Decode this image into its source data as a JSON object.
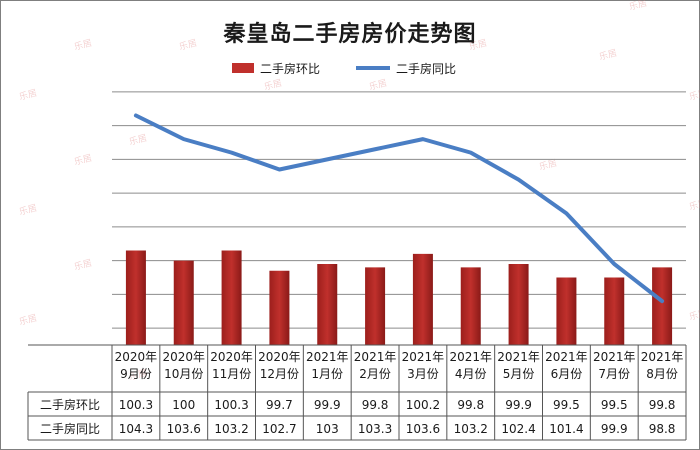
{
  "chart_data": {
    "type": "bar+line",
    "title": "秦皇岛二手房房价走势图",
    "categories": [
      "2020年\n9月份",
      "2020年\n10月份",
      "2020年\n11月份",
      "2020年\n12月份",
      "2021年\n1月份",
      "2021年\n2月份",
      "2021年\n3月份",
      "2021年\n4月份",
      "2021年\n5月份",
      "2021年\n6月份",
      "2021年\n7月份",
      "2021年\n8月份"
    ],
    "series": [
      {
        "name": "二手房环比",
        "kind": "bar",
        "values": [
          100.3,
          100,
          100.3,
          99.7,
          99.9,
          99.8,
          100.2,
          99.8,
          99.9,
          99.5,
          99.5,
          99.8
        ],
        "color": "#c0302c"
      },
      {
        "name": "二手房同比",
        "kind": "line",
        "values": [
          104.3,
          103.6,
          103.2,
          102.7,
          103,
          103.3,
          103.6,
          103.2,
          102.4,
          101.4,
          99.9,
          98.8
        ],
        "color": "#4a7ec4"
      }
    ],
    "table": {
      "rows": [
        {
          "label": "二手房环比",
          "values": [
            "100.3",
            "100",
            "100.3",
            "99.7",
            "99.9",
            "99.8",
            "100.2",
            "99.8",
            "99.9",
            "99.5",
            "99.5",
            "99.8"
          ]
        },
        {
          "label": "二手房同比",
          "values": [
            "104.3",
            "103.6",
            "103.2",
            "102.7",
            "103",
            "103.3",
            "103.6",
            "103.2",
            "102.4",
            "101.4",
            "99.9",
            "98.8"
          ]
        }
      ]
    },
    "ylim": [
      97.5,
      105.5
    ],
    "grid": true,
    "legend_position": "top-center",
    "watermark": "乐居"
  }
}
